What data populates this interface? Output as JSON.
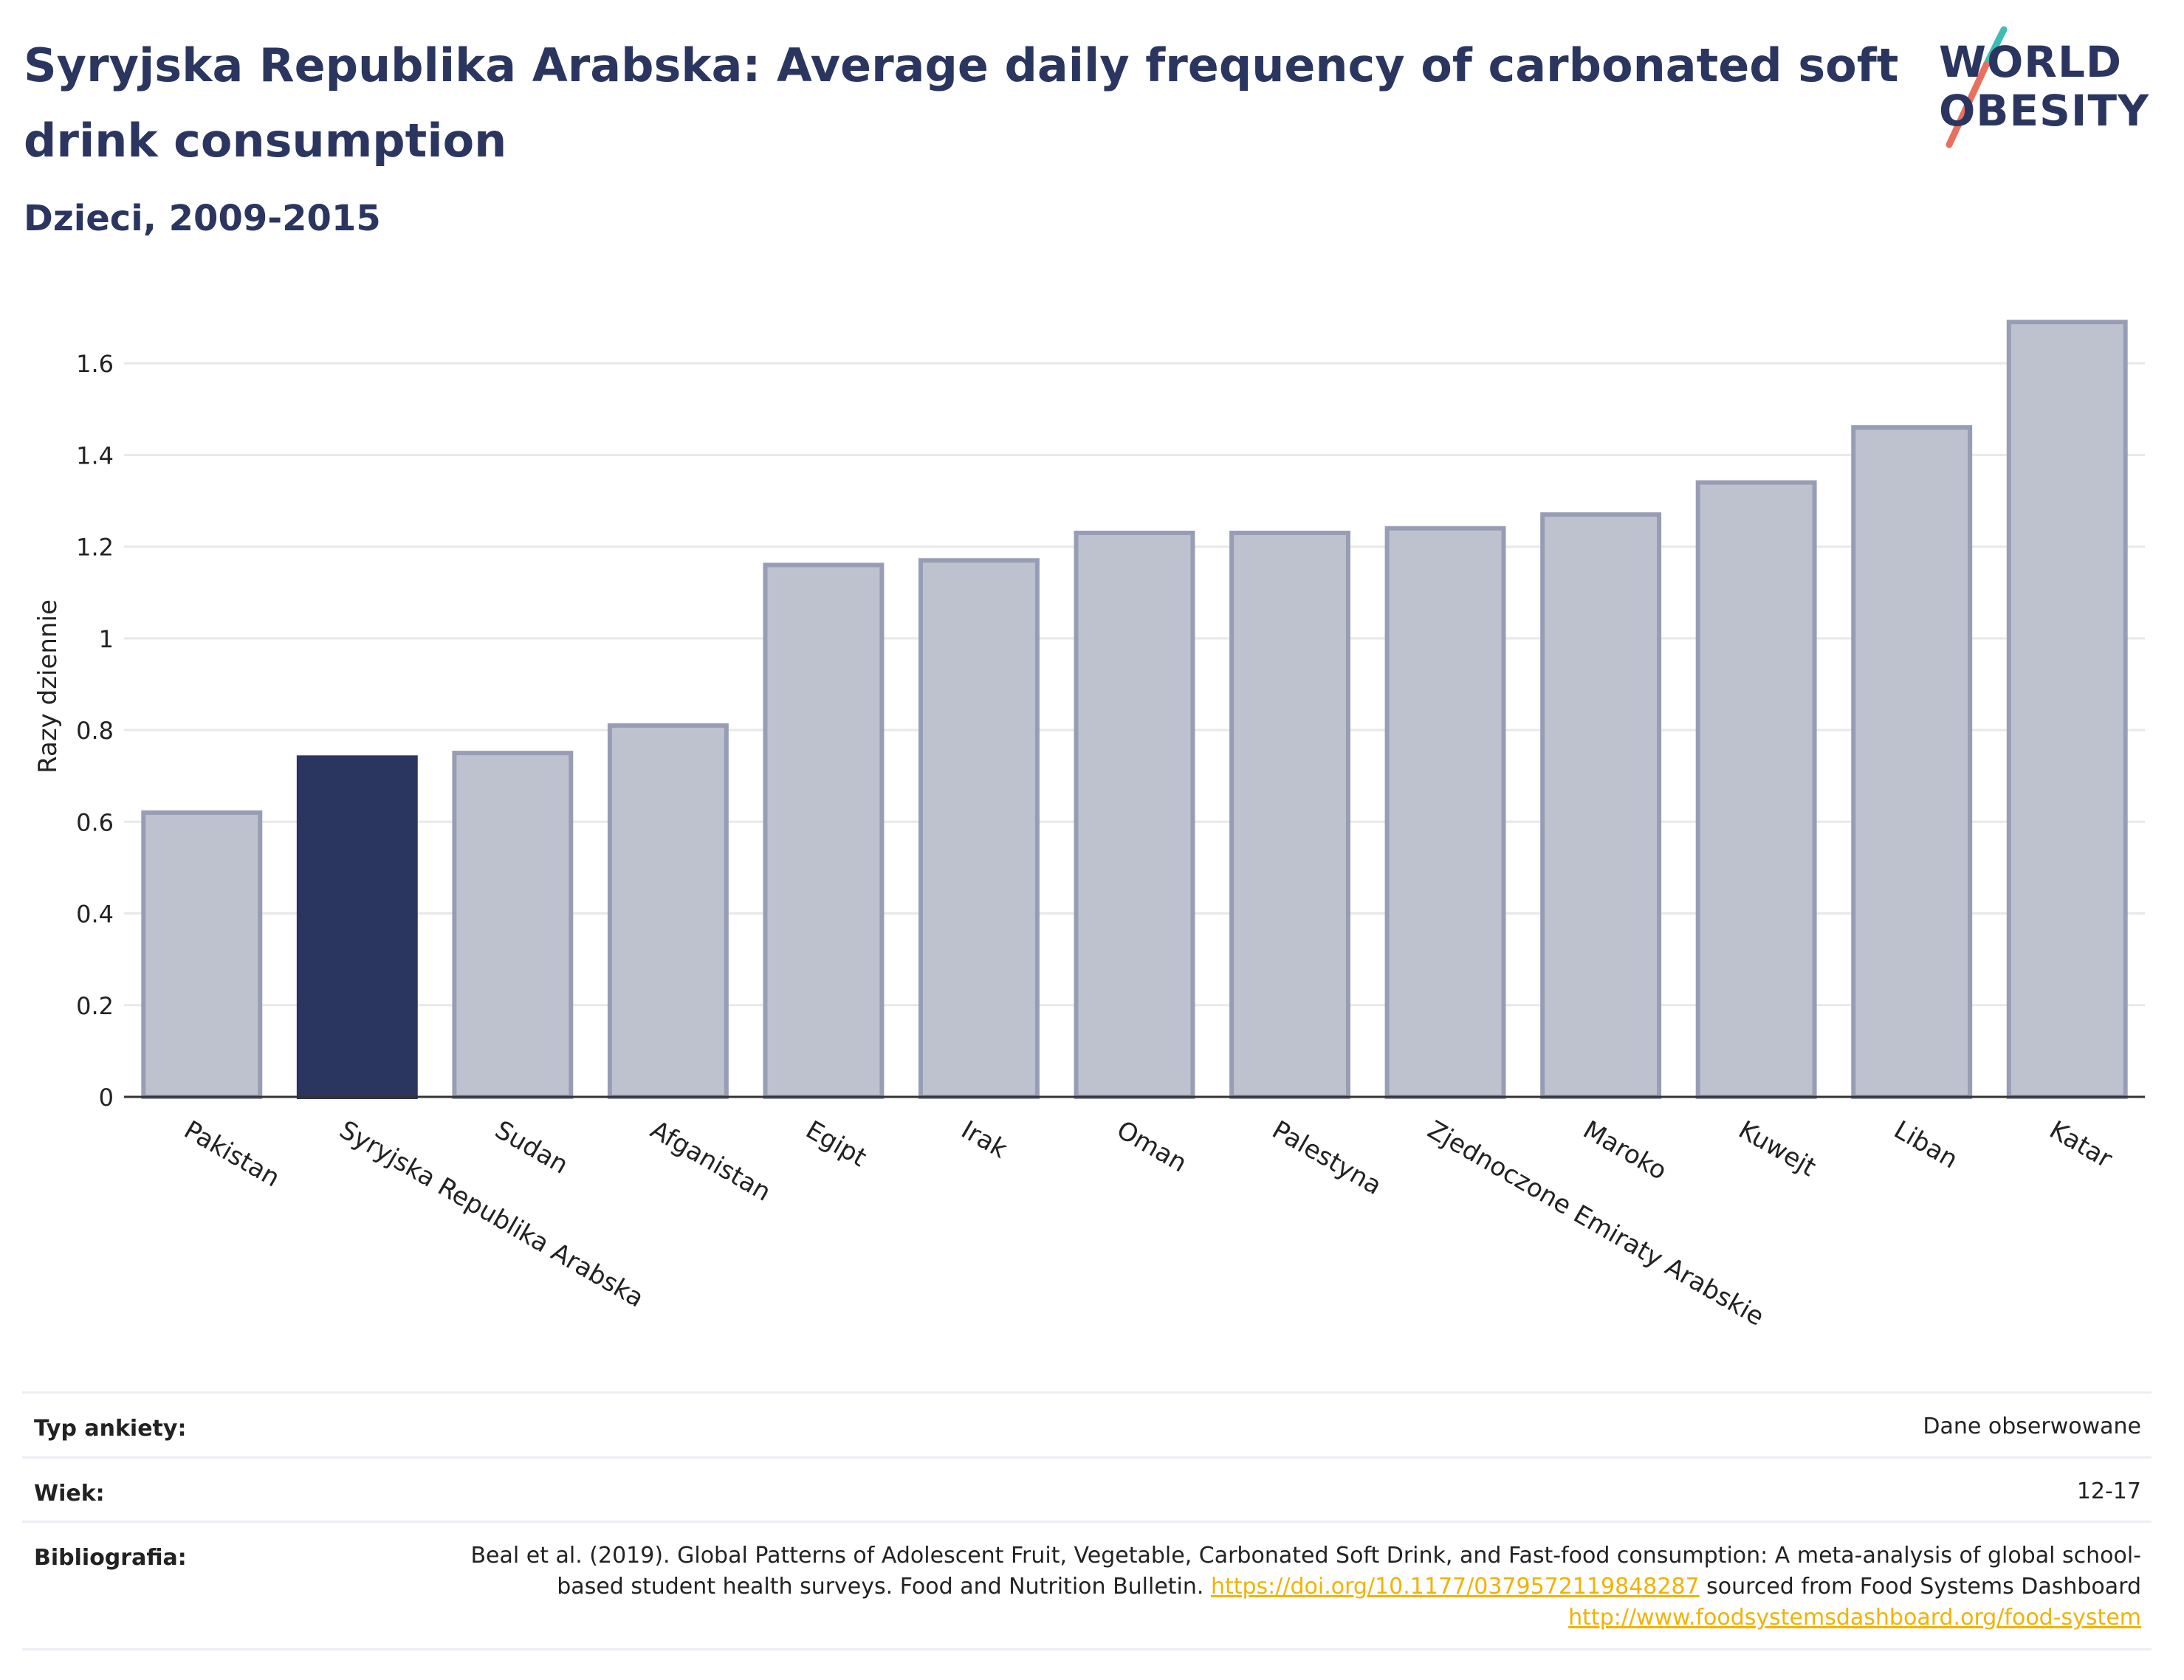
{
  "title": "Syryjska Republika Arabska: Average daily frequency of carbonated soft drink consumption",
  "subtitle": "Dzieci, 2009-2015",
  "logo": {
    "line1": "WORLD",
    "line2": "OBESITY"
  },
  "colors": {
    "highlight": "#2b3660",
    "bar": "#bec2cf",
    "bar_border": "#979db4",
    "grid": "#e8e8ec",
    "link": "#f2b200"
  },
  "chart_data": {
    "type": "bar",
    "ylabel": "Razy dziennie",
    "xlabel": "",
    "ylim": [
      0,
      1.7
    ],
    "yticks": [
      0,
      0.2,
      0.4,
      0.6,
      0.8,
      1,
      1.2,
      1.4,
      1.6
    ],
    "ytick_labels": [
      "0",
      "0.2",
      "0.4",
      "0.6",
      "0.8",
      "1",
      "1.2",
      "1.4",
      "1.6"
    ],
    "grid": true,
    "highlight": "Syryjska Republika Arabska",
    "categories": [
      "Pakistan",
      "Syryjska Republika Arabska",
      "Sudan",
      "Afganistan",
      "Egipt",
      "Irak",
      "Oman",
      "Palestyna",
      "Zjednoczone Emiraty Arabskie",
      "Maroko",
      "Kuwejt",
      "Liban",
      "Katar"
    ],
    "values": [
      0.62,
      0.74,
      0.75,
      0.81,
      1.16,
      1.17,
      1.23,
      1.23,
      1.24,
      1.27,
      1.34,
      1.46,
      1.69
    ]
  },
  "info": {
    "survey_label": "Typ ankiety:",
    "survey_value": "Dane obserwowane",
    "age_label": "Wiek:",
    "age_value": "12-17",
    "bib_label": "Bibliografia:",
    "bib_text1": "Beal et al. (2019). Global Patterns of Adolescent Fruit, Vegetable, Carbonated Soft Drink, and Fast-food consumption: A meta-analysis of global school-based student health surveys. Food and Nutrition Bulletin. ",
    "bib_link1": "https://doi.org/10.1177/0379572119848287",
    "bib_text2": " sourced from Food Systems Dashboard ",
    "bib_link2": "http://www.foodsystemsdashboard.org/food-system"
  }
}
